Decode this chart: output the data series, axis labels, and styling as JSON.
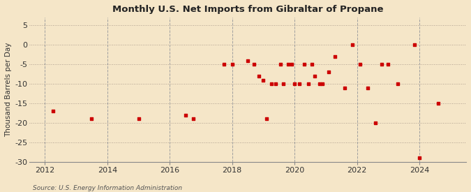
{
  "title": "Monthly U.S. Net Imports from Gibraltar of Propane",
  "ylabel": "Thousand Barrels per Day",
  "source": "Source: U.S. Energy Information Administration",
  "background_color": "#f5e6c8",
  "plot_background_color": "#f5e6c8",
  "marker_color": "#cc0000",
  "ylim": [
    -30,
    7
  ],
  "xlim": [
    2011.5,
    2025.5
  ],
  "yticks": [
    5,
    0,
    -5,
    -10,
    -15,
    -20,
    -25,
    -30
  ],
  "xticks": [
    2012,
    2014,
    2016,
    2018,
    2020,
    2022,
    2024
  ],
  "data_points": [
    [
      2012.25,
      -17
    ],
    [
      2013.5,
      -19
    ],
    [
      2015.0,
      -19
    ],
    [
      2016.5,
      -18
    ],
    [
      2016.75,
      -19
    ],
    [
      2017.75,
      -5
    ],
    [
      2018.0,
      -5
    ],
    [
      2018.5,
      -4
    ],
    [
      2018.7,
      -5
    ],
    [
      2018.85,
      -8
    ],
    [
      2019.0,
      -9
    ],
    [
      2019.1,
      -19
    ],
    [
      2019.25,
      -10
    ],
    [
      2019.4,
      -10
    ],
    [
      2019.55,
      -5
    ],
    [
      2019.65,
      -10
    ],
    [
      2019.8,
      -5
    ],
    [
      2019.9,
      -5
    ],
    [
      2020.0,
      -10
    ],
    [
      2020.15,
      -10
    ],
    [
      2020.3,
      -5
    ],
    [
      2020.45,
      -10
    ],
    [
      2020.55,
      -5
    ],
    [
      2020.65,
      -8
    ],
    [
      2020.8,
      -10
    ],
    [
      2020.9,
      -10
    ],
    [
      2021.1,
      -7
    ],
    [
      2021.3,
      -3
    ],
    [
      2021.6,
      -11
    ],
    [
      2021.85,
      0
    ],
    [
      2022.1,
      -5
    ],
    [
      2022.35,
      -11
    ],
    [
      2022.6,
      -20
    ],
    [
      2022.8,
      -5
    ],
    [
      2023.0,
      -5
    ],
    [
      2023.3,
      -10
    ],
    [
      2023.85,
      0
    ],
    [
      2024.0,
      -29
    ],
    [
      2024.6,
      -15
    ]
  ]
}
